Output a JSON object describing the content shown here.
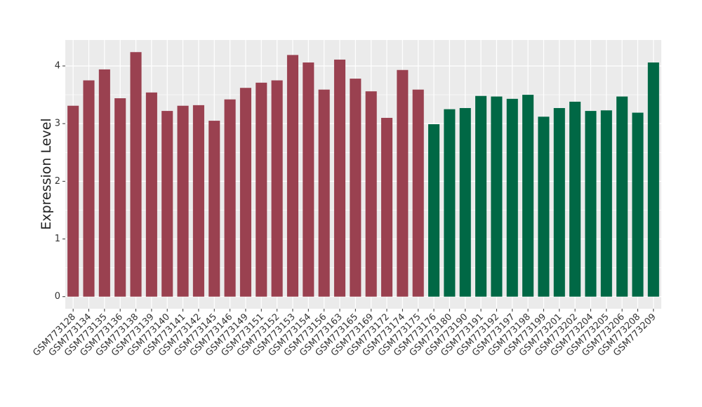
{
  "chart_data": {
    "type": "bar",
    "y_label": "Expression Level",
    "categories": [
      "GSM773128",
      "GSM773134",
      "GSM773135",
      "GSM773136",
      "GSM773138",
      "GSM773139",
      "GSM773140",
      "GSM773141",
      "GSM773142",
      "GSM773145",
      "GSM773146",
      "GSM773149",
      "GSM773151",
      "GSM773152",
      "GSM773153",
      "GSM773154",
      "GSM773156",
      "GSM773163",
      "GSM773165",
      "GSM773169",
      "GSM773172",
      "GSM773174",
      "GSM773175",
      "GSM773176",
      "GSM773180",
      "GSM773190",
      "GSM773191",
      "GSM773192",
      "GSM773197",
      "GSM773198",
      "GSM773199",
      "GSM773201",
      "GSM773202",
      "GSM773204",
      "GSM773205",
      "GSM773206",
      "GSM773208",
      "GSM773209"
    ],
    "values": [
      3.31,
      3.75,
      3.94,
      3.44,
      4.24,
      3.54,
      3.22,
      3.31,
      3.32,
      3.05,
      3.42,
      3.62,
      3.71,
      3.75,
      4.19,
      4.06,
      3.59,
      4.11,
      3.78,
      3.56,
      3.1,
      3.93,
      3.59,
      2.99,
      3.25,
      3.27,
      3.48,
      3.47,
      3.43,
      3.5,
      3.12,
      3.27,
      3.38,
      3.22,
      3.23,
      3.47,
      3.19,
      4.06
    ],
    "bar_colors": [
      "#9a4150",
      "#9a4150",
      "#9a4150",
      "#9a4150",
      "#9a4150",
      "#9a4150",
      "#9a4150",
      "#9a4150",
      "#9a4150",
      "#9a4150",
      "#9a4150",
      "#9a4150",
      "#9a4150",
      "#9a4150",
      "#9a4150",
      "#9a4150",
      "#9a4150",
      "#9a4150",
      "#9a4150",
      "#9a4150",
      "#9a4150",
      "#9a4150",
      "#9a4150",
      "#006845",
      "#006845",
      "#006845",
      "#006845",
      "#006845",
      "#006845",
      "#006845",
      "#006845",
      "#006845",
      "#006845",
      "#006845",
      "#006845",
      "#006845",
      "#006845",
      "#006845"
    ],
    "ylim": [
      -0.21,
      4.45
    ],
    "yticks": [
      0,
      1,
      2,
      3,
      4
    ],
    "grid": true
  }
}
